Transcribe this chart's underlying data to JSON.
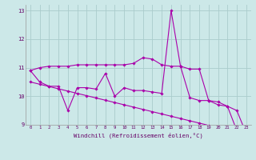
{
  "background_color": "#cce8e8",
  "grid_color": "#aacccc",
  "line_color": "#aa00aa",
  "x_values": [
    0,
    1,
    2,
    3,
    4,
    5,
    6,
    7,
    8,
    9,
    10,
    11,
    12,
    13,
    14,
    15,
    16,
    17,
    18,
    19,
    20,
    21,
    22,
    23
  ],
  "line1": [
    10.9,
    11.0,
    11.05,
    11.05,
    11.05,
    11.1,
    11.1,
    11.1,
    11.1,
    11.1,
    11.1,
    11.15,
    11.35,
    11.3,
    11.1,
    11.05,
    11.05,
    10.95,
    10.95,
    9.85,
    9.8,
    9.65,
    8.8,
    8.7
  ],
  "line2": [
    10.9,
    10.5,
    10.35,
    10.35,
    9.5,
    10.3,
    10.3,
    10.25,
    10.8,
    10.0,
    10.3,
    10.2,
    10.2,
    10.15,
    10.1,
    13.0,
    11.05,
    9.95,
    9.85,
    9.85,
    9.7,
    9.65,
    9.5,
    8.7
  ],
  "line3": [
    10.5,
    10.42,
    10.34,
    10.26,
    10.18,
    10.1,
    10.02,
    9.94,
    9.86,
    9.78,
    9.7,
    9.62,
    9.54,
    9.46,
    9.38,
    9.3,
    9.22,
    9.14,
    9.06,
    8.98,
    8.9,
    8.82,
    8.74,
    8.67
  ],
  "xlabel": "Windchill (Refroidissement éolien,°C)",
  "ylim": [
    9.0,
    13.2
  ],
  "xlim": [
    -0.5,
    23.5
  ],
  "yticks": [
    9,
    10,
    11,
    12,
    13
  ],
  "xticks": [
    0,
    1,
    2,
    3,
    4,
    5,
    6,
    7,
    8,
    9,
    10,
    11,
    12,
    13,
    14,
    15,
    16,
    17,
    18,
    19,
    20,
    21,
    22,
    23
  ]
}
